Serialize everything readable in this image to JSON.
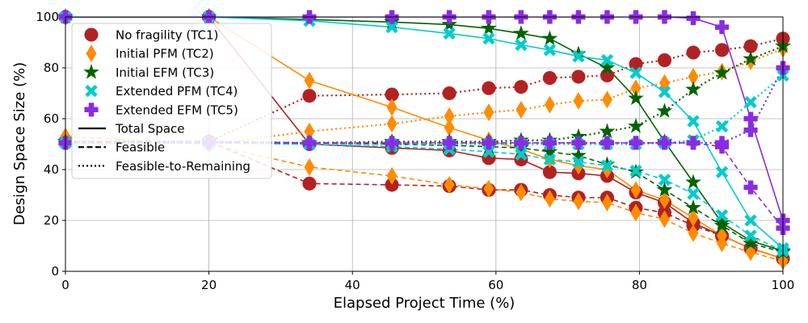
{
  "chart_data": {
    "type": "line",
    "xlabel": "Elapsed Project Time (%)",
    "ylabel": "Design Space Size (%)",
    "xlim": [
      0,
      100
    ],
    "ylim": [
      0,
      100
    ],
    "xticks": [
      0,
      20,
      40,
      60,
      80,
      100
    ],
    "yticks": [
      0,
      20,
      40,
      60,
      80,
      100
    ],
    "grid": true,
    "legend_position": "upper-left",
    "legend": {
      "series": [
        "No fragility (TC1)",
        "Initial PFM (TC2)",
        "Initial EFM (TC3)",
        "Extended PFM (TC4)",
        "Extended EFM (TC5)"
      ],
      "line_styles": [
        {
          "label": "Total Space",
          "style": "solid"
        },
        {
          "label": "Feasible",
          "style": "dashed"
        },
        {
          "label": "Feasible-to-Remaining",
          "style": "dotted"
        }
      ]
    },
    "series": [
      {
        "name": "No fragility (TC1)",
        "color": "#b22222",
        "marker": "circle",
        "total": [
          [
            0,
            100
          ],
          [
            20,
            100
          ],
          [
            34,
            50
          ],
          [
            45.5,
            48.5
          ],
          [
            53.5,
            47.5
          ],
          [
            59,
            44.5
          ],
          [
            63.5,
            44
          ],
          [
            67.5,
            39
          ],
          [
            71.5,
            38.5
          ],
          [
            75.5,
            37.5
          ],
          [
            79.5,
            31
          ],
          [
            83.5,
            27
          ],
          [
            87.5,
            19
          ],
          [
            91.5,
            14
          ],
          [
            95.5,
            9
          ],
          [
            100,
            5
          ]
        ],
        "feasible": [
          [
            0,
            51
          ],
          [
            20,
            51
          ],
          [
            34,
            34.5
          ],
          [
            45.5,
            34
          ],
          [
            53.5,
            33.5
          ],
          [
            59,
            32
          ],
          [
            63.5,
            32
          ],
          [
            67.5,
            30
          ],
          [
            71.5,
            29
          ],
          [
            75.5,
            29
          ],
          [
            79.5,
            25
          ],
          [
            83.5,
            23
          ],
          [
            87.5,
            18
          ],
          [
            91.5,
            14
          ],
          [
            95.5,
            9
          ],
          [
            100,
            5
          ]
        ],
        "remaining": [
          [
            0,
            51
          ],
          [
            20,
            51
          ],
          [
            34,
            69
          ],
          [
            45.5,
            69.5
          ],
          [
            53.5,
            70
          ],
          [
            59,
            72
          ],
          [
            63.5,
            72.5
          ],
          [
            67.5,
            76
          ],
          [
            71.5,
            76.5
          ],
          [
            75.5,
            77
          ],
          [
            79.5,
            81.5
          ],
          [
            83.5,
            83
          ],
          [
            87.5,
            86
          ],
          [
            91.5,
            87
          ],
          [
            95.5,
            88.5
          ],
          [
            100,
            91.5
          ]
        ]
      },
      {
        "name": "Initial PFM (TC2)",
        "color": "#ff8c00",
        "marker": "diamond",
        "total": [
          [
            0,
            100
          ],
          [
            20,
            100
          ],
          [
            34,
            75
          ],
          [
            45.5,
            64.5
          ],
          [
            53.5,
            56.5
          ],
          [
            59,
            51.5
          ],
          [
            63.5,
            48
          ],
          [
            67.5,
            44
          ],
          [
            71.5,
            41.5
          ],
          [
            75.5,
            40
          ],
          [
            79.5,
            32
          ],
          [
            83.5,
            28
          ],
          [
            87.5,
            21
          ],
          [
            91.5,
            14
          ],
          [
            95.5,
            9
          ],
          [
            100,
            5
          ]
        ],
        "feasible": [
          [
            0,
            53
          ],
          [
            20,
            50
          ],
          [
            34,
            41
          ],
          [
            45.5,
            37.5
          ],
          [
            53.5,
            34
          ],
          [
            59,
            32.5
          ],
          [
            63.5,
            31
          ],
          [
            67.5,
            28.5
          ],
          [
            71.5,
            27.5
          ],
          [
            75.5,
            27
          ],
          [
            79.5,
            23
          ],
          [
            83.5,
            20.5
          ],
          [
            87.5,
            15
          ],
          [
            91.5,
            11
          ],
          [
            95.5,
            7.5
          ],
          [
            100,
            4
          ]
        ],
        "remaining": [
          [
            0,
            53
          ],
          [
            20,
            50
          ],
          [
            34,
            55
          ],
          [
            45.5,
            58
          ],
          [
            53.5,
            61
          ],
          [
            59,
            62.5
          ],
          [
            63.5,
            63.5
          ],
          [
            67.5,
            65.5
          ],
          [
            71.5,
            67
          ],
          [
            75.5,
            67.5
          ],
          [
            79.5,
            72
          ],
          [
            83.5,
            74
          ],
          [
            87.5,
            76.5
          ],
          [
            91.5,
            78.5
          ],
          [
            95.5,
            82.5
          ],
          [
            100,
            87.5
          ]
        ]
      },
      {
        "name": "Initial EFM (TC3)",
        "color": "#006400",
        "marker": "star",
        "total": [
          [
            0,
            100
          ],
          [
            20,
            100
          ],
          [
            34,
            99
          ],
          [
            45.5,
            98
          ],
          [
            53.5,
            97
          ],
          [
            59,
            95.5
          ],
          [
            63.5,
            93.5
          ],
          [
            67.5,
            91.5
          ],
          [
            71.5,
            85.5
          ],
          [
            75.5,
            80
          ],
          [
            79.5,
            68
          ],
          [
            83.5,
            51
          ],
          [
            87.5,
            35
          ],
          [
            91.5,
            19
          ],
          [
            95.5,
            12
          ],
          [
            100,
            8
          ]
        ],
        "feasible": [
          [
            0,
            51
          ],
          [
            20,
            51
          ],
          [
            34,
            50.5
          ],
          [
            45.5,
            50
          ],
          [
            53.5,
            49.5
          ],
          [
            59,
            49
          ],
          [
            63.5,
            48.5
          ],
          [
            67.5,
            47
          ],
          [
            71.5,
            45.5
          ],
          [
            75.5,
            42
          ],
          [
            79.5,
            39
          ],
          [
            83.5,
            32
          ],
          [
            87.5,
            25
          ],
          [
            91.5,
            18
          ],
          [
            95.5,
            11
          ],
          [
            100,
            7.5
          ]
        ],
        "remaining": [
          [
            0,
            51
          ],
          [
            20,
            51
          ],
          [
            34,
            50.5
          ],
          [
            45.5,
            51
          ],
          [
            53.5,
            51
          ],
          [
            59,
            51
          ],
          [
            63.5,
            51.5
          ],
          [
            67.5,
            51.5
          ],
          [
            71.5,
            53
          ],
          [
            75.5,
            55
          ],
          [
            79.5,
            57
          ],
          [
            83.5,
            63
          ],
          [
            87.5,
            71.5
          ],
          [
            91.5,
            78
          ],
          [
            95.5,
            83.5
          ],
          [
            100,
            88.5
          ]
        ]
      },
      {
        "name": "Extended PFM (TC4)",
        "color": "#00cccc",
        "marker": "x",
        "total": [
          [
            0,
            100
          ],
          [
            20,
            100
          ],
          [
            34,
            98.5
          ],
          [
            45.5,
            96
          ],
          [
            53.5,
            93.5
          ],
          [
            59,
            91.5
          ],
          [
            63.5,
            89
          ],
          [
            67.5,
            87
          ],
          [
            71.5,
            84.5
          ],
          [
            75.5,
            83
          ],
          [
            79.5,
            78
          ],
          [
            83.5,
            70.5
          ],
          [
            87.5,
            59
          ],
          [
            91.5,
            39
          ],
          [
            95.5,
            20
          ],
          [
            100,
            9
          ]
        ],
        "feasible": [
          [
            0,
            50.5
          ],
          [
            20,
            50.5
          ],
          [
            34,
            50
          ],
          [
            45.5,
            49
          ],
          [
            53.5,
            48
          ],
          [
            59,
            47
          ],
          [
            63.5,
            46
          ],
          [
            67.5,
            44
          ],
          [
            71.5,
            43
          ],
          [
            75.5,
            41.5
          ],
          [
            79.5,
            39.5
          ],
          [
            83.5,
            36
          ],
          [
            87.5,
            30.5
          ],
          [
            91.5,
            22
          ],
          [
            95.5,
            14
          ],
          [
            100,
            8
          ]
        ],
        "remaining": [
          [
            0,
            50.5
          ],
          [
            20,
            50.5
          ],
          [
            34,
            50
          ],
          [
            45.5,
            50
          ],
          [
            53.5,
            50
          ],
          [
            59,
            50
          ],
          [
            63.5,
            50
          ],
          [
            67.5,
            50
          ],
          [
            71.5,
            50
          ],
          [
            75.5,
            50
          ],
          [
            79.5,
            50
          ],
          [
            83.5,
            50.5
          ],
          [
            87.5,
            51.5
          ],
          [
            91.5,
            57
          ],
          [
            95.5,
            66.5
          ],
          [
            100,
            77
          ]
        ]
      },
      {
        "name": "Extended EFM (TC5)",
        "color": "#8a2be2",
        "marker": "plus",
        "total": [
          [
            0,
            100
          ],
          [
            20,
            100
          ],
          [
            34,
            100
          ],
          [
            45.5,
            100
          ],
          [
            53.5,
            100
          ],
          [
            59,
            100
          ],
          [
            63.5,
            100
          ],
          [
            67.5,
            100
          ],
          [
            71.5,
            100
          ],
          [
            75.5,
            100
          ],
          [
            79.5,
            100
          ],
          [
            83.5,
            100
          ],
          [
            87.5,
            99.5
          ],
          [
            91.5,
            96
          ],
          [
            95.5,
            60
          ],
          [
            100,
            20
          ]
        ],
        "feasible": [
          [
            0,
            50.5
          ],
          [
            20,
            50.5
          ],
          [
            34,
            50.5
          ],
          [
            45.5,
            50.5
          ],
          [
            53.5,
            50.5
          ],
          [
            59,
            50.5
          ],
          [
            63.5,
            50.5
          ],
          [
            67.5,
            50.5
          ],
          [
            71.5,
            50.5
          ],
          [
            75.5,
            50.5
          ],
          [
            79.5,
            50.5
          ],
          [
            83.5,
            50.5
          ],
          [
            87.5,
            50.5
          ],
          [
            91.5,
            49
          ],
          [
            95.5,
            33
          ],
          [
            100,
            17
          ]
        ],
        "remaining": [
          [
            0,
            50.5
          ],
          [
            20,
            50.5
          ],
          [
            34,
            50.5
          ],
          [
            45.5,
            50.5
          ],
          [
            53.5,
            50.5
          ],
          [
            59,
            50.5
          ],
          [
            63.5,
            50.5
          ],
          [
            67.5,
            50.5
          ],
          [
            71.5,
            50.5
          ],
          [
            75.5,
            50.5
          ],
          [
            79.5,
            50.5
          ],
          [
            83.5,
            50.5
          ],
          [
            87.5,
            50.5
          ],
          [
            91.5,
            50.5
          ],
          [
            95.5,
            55.5
          ],
          [
            100,
            80
          ]
        ]
      }
    ]
  }
}
